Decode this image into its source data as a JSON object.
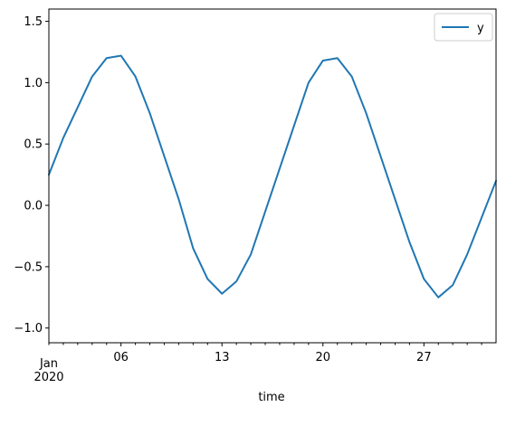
{
  "chart_data": {
    "type": "line",
    "title": "",
    "xlabel": "time",
    "ylabel": "",
    "x_start": "2020-01-01",
    "x_end": "2020-02-01",
    "xlim": [
      "2020-01-01",
      "2020-02-01"
    ],
    "ylim": [
      -1.12,
      1.6
    ],
    "x_ticks": [
      {
        "date": "2020-01-06",
        "label": "06"
      },
      {
        "date": "2020-01-13",
        "label": "13"
      },
      {
        "date": "2020-01-20",
        "label": "20"
      },
      {
        "date": "2020-01-27",
        "label": "27"
      }
    ],
    "x_minor_tick_dates": [
      "2020-01-01",
      "2020-01-02",
      "2020-01-03",
      "2020-01-04",
      "2020-01-05",
      "2020-01-07",
      "2020-01-08",
      "2020-01-09",
      "2020-01-10",
      "2020-01-11",
      "2020-01-12",
      "2020-01-14",
      "2020-01-15",
      "2020-01-16",
      "2020-01-17",
      "2020-01-18",
      "2020-01-19",
      "2020-01-21",
      "2020-01-22",
      "2020-01-23",
      "2020-01-24",
      "2020-01-25",
      "2020-01-26",
      "2020-01-28",
      "2020-01-29",
      "2020-01-30",
      "2020-01-31"
    ],
    "x_secondary_label": {
      "month": "Jan",
      "year": "2020"
    },
    "y_ticks": [
      -1.0,
      -0.5,
      0.0,
      0.5,
      1.0,
      1.5
    ],
    "y_tick_labels": [
      "−1.0",
      "−0.5",
      "0.0",
      "0.5",
      "1.0",
      "1.5"
    ],
    "legend": {
      "position": "top-right",
      "entries": [
        "y"
      ]
    },
    "grid": false,
    "series": [
      {
        "name": "y",
        "color": "#1f77b4",
        "x": [
          "2020-01-01",
          "2020-01-02",
          "2020-01-03",
          "2020-01-04",
          "2020-01-05",
          "2020-01-06",
          "2020-01-07",
          "2020-01-08",
          "2020-01-09",
          "2020-01-10",
          "2020-01-11",
          "2020-01-12",
          "2020-01-13",
          "2020-01-14",
          "2020-01-15",
          "2020-01-16",
          "2020-01-17",
          "2020-01-18",
          "2020-01-19",
          "2020-01-20",
          "2020-01-21",
          "2020-01-22",
          "2020-01-23",
          "2020-01-24",
          "2020-01-25",
          "2020-01-26",
          "2020-01-27",
          "2020-01-28",
          "2020-01-29",
          "2020-01-30",
          "2020-01-31",
          "2020-02-01"
        ],
        "values": [
          0.25,
          0.55,
          0.8,
          1.05,
          1.2,
          1.22,
          1.05,
          0.75,
          0.4,
          0.05,
          -0.35,
          -0.6,
          -0.72,
          -0.62,
          -0.4,
          -0.05,
          0.3,
          0.65,
          1.0,
          1.18,
          1.2,
          1.05,
          0.75,
          0.4,
          0.05,
          -0.3,
          -0.6,
          -0.75,
          -0.65,
          -0.4,
          -0.1,
          0.2
        ]
      }
    ]
  }
}
